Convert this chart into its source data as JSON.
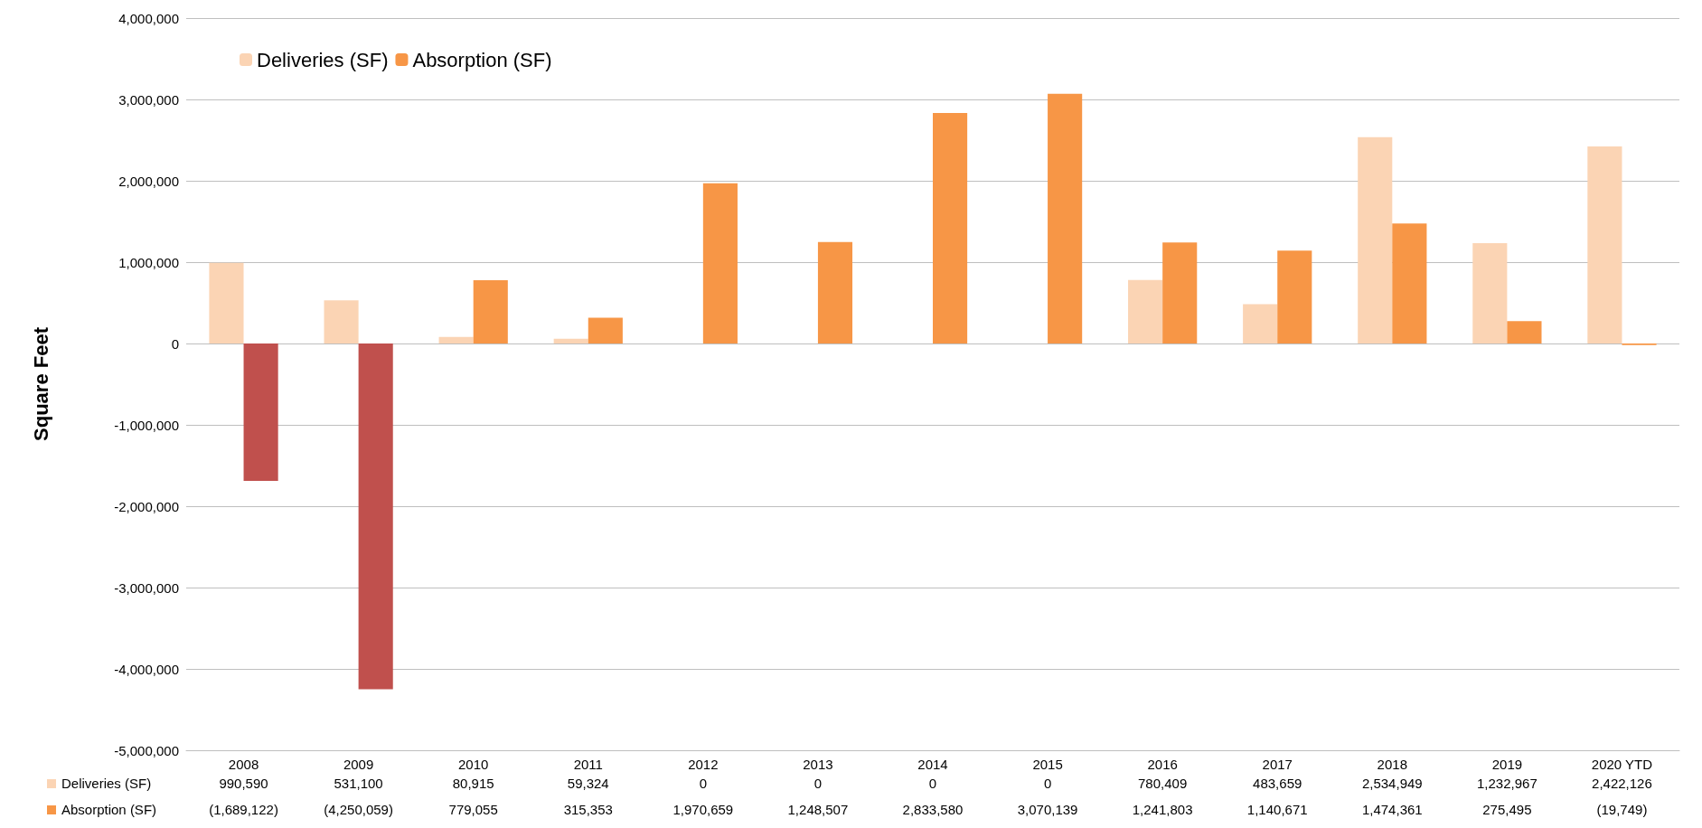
{
  "chart_data": {
    "type": "bar",
    "ylabel": "Square Feet",
    "categories": [
      "2008",
      "2009",
      "2010",
      "2011",
      "2012",
      "2013",
      "2014",
      "2015",
      "2016",
      "2017",
      "2018",
      "2019",
      "2020 YTD"
    ],
    "series": [
      {
        "name": "Deliveries (SF)",
        "color": "#fbd4b4",
        "values": [
          990590,
          531100,
          80915,
          59324,
          0,
          0,
          0,
          0,
          780409,
          483659,
          2534949,
          1232967,
          2422126
        ],
        "value_labels": [
          "990,590",
          "531,100",
          "80,915",
          "59,324",
          "0",
          "0",
          "0",
          "0",
          "780,409",
          "483,659",
          "2,534,949",
          "1,232,967",
          "2,422,126"
        ]
      },
      {
        "name": "Absorption (SF)",
        "color": "#f79646",
        "colors": [
          "#c0504d",
          "#c0504d",
          "#f79646",
          "#f79646",
          "#f79646",
          "#f79646",
          "#f79646",
          "#f79646",
          "#f79646",
          "#f79646",
          "#f79646",
          "#f79646",
          "#f79646"
        ],
        "values": [
          -1689122,
          -4250059,
          779055,
          315353,
          1970659,
          1248507,
          2833580,
          3070139,
          1241803,
          1140671,
          1474361,
          275495,
          -19749
        ],
        "value_labels": [
          "(1,689,122)",
          "(4,250,059)",
          "779,055",
          "315,353",
          "1,970,659",
          "1,248,507",
          "2,833,580",
          "3,070,139",
          "1,241,803",
          "1,140,671",
          "1,474,361",
          "275,495",
          "(19,749)"
        ]
      }
    ],
    "ylim": [
      -5000000,
      4000000
    ],
    "yticks": [
      {
        "value": -5000000,
        "label": "-5,000,000"
      },
      {
        "value": -4000000,
        "label": "-4,000,000"
      },
      {
        "value": -3000000,
        "label": "-3,000,000"
      },
      {
        "value": -2000000,
        "label": "-2,000,000"
      },
      {
        "value": -1000000,
        "label": "-1,000,000"
      },
      0,
      {
        "value": 1000000,
        "label": "1,000,000"
      },
      {
        "value": 2000000,
        "label": "2,000,000"
      },
      {
        "value": 3000000,
        "label": "3,000,000"
      },
      {
        "value": 4000000,
        "label": "4,000,000"
      }
    ],
    "grid": "y",
    "legend": "top left"
  }
}
